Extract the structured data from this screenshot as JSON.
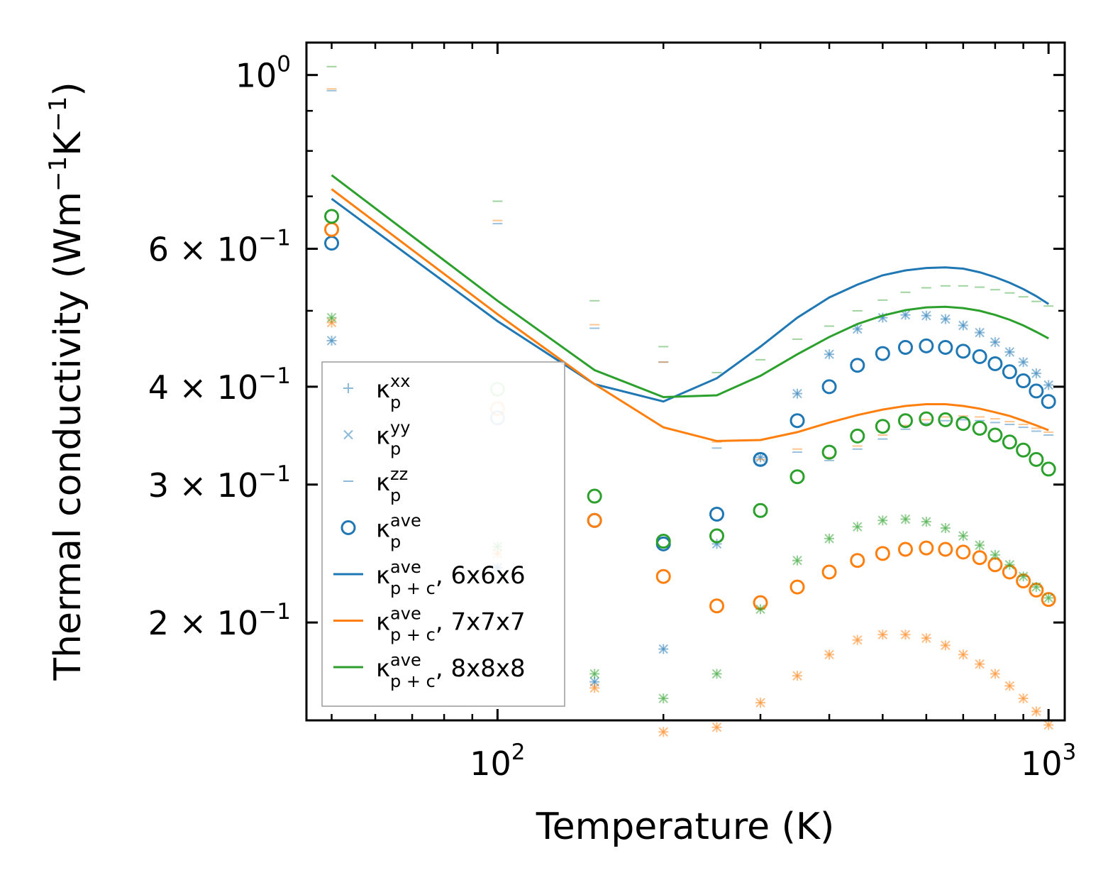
{
  "chart_data": {
    "type": "scatter",
    "xscale": "log",
    "yscale": "log",
    "xlabel": "Temperature (K)",
    "ylabel_main": "Thermal conductivity (Wm",
    "ylabel_sup1": "−1",
    "ylabel_mid": "K",
    "ylabel_sup2": "−1",
    "ylabel_end": ")",
    "xlim": [
      45,
      1070
    ],
    "ylim": [
      0.15,
      1.1
    ],
    "xticks": [
      {
        "value": 100,
        "base": "10",
        "exp": "2"
      },
      {
        "value": 1000,
        "base": "10",
        "exp": "3"
      }
    ],
    "yticks": [
      {
        "value": 1.0,
        "mant": "",
        "base": "10",
        "exp": "0"
      },
      {
        "value": 0.6,
        "mant": "6 × ",
        "base": "10",
        "exp": "−1"
      },
      {
        "value": 0.4,
        "mant": "4 × ",
        "base": "10",
        "exp": "−1"
      },
      {
        "value": 0.3,
        "mant": "3 × ",
        "base": "10",
        "exp": "−1"
      },
      {
        "value": 0.2,
        "mant": "2 × ",
        "base": "10",
        "exp": "−1"
      }
    ],
    "x": [
      50,
      100,
      150,
      200,
      250,
      300,
      350,
      400,
      450,
      500,
      550,
      600,
      650,
      700,
      750,
      800,
      850,
      900,
      950,
      1000
    ],
    "series": [
      {
        "name": "6x6x6",
        "color": "#1f77b4",
        "line": [
          0.695,
          0.485,
          0.403,
          0.383,
          0.41,
          0.45,
          0.49,
          0.52,
          0.54,
          0.555,
          0.563,
          0.567,
          0.568,
          0.566,
          0.56,
          0.552,
          0.543,
          0.533,
          0.522,
          0.51
        ],
        "ave": [
          0.61,
          0.365,
          0.27,
          0.252,
          0.275,
          0.323,
          0.362,
          0.4,
          0.426,
          0.441,
          0.449,
          0.451,
          0.449,
          0.444,
          0.437,
          0.428,
          0.418,
          0.407,
          0.395,
          0.383
        ],
        "xx": [
          0.458,
          0.235,
          0.168,
          0.185,
          0.252,
          0.325,
          0.392,
          0.44,
          0.474,
          0.49,
          0.494,
          0.493,
          0.488,
          0.479,
          0.469,
          0.456,
          0.443,
          0.43,
          0.416,
          0.402
        ],
        "yy": [
          0.458,
          0.235,
          0.168,
          0.185,
          0.252,
          0.325,
          0.392,
          0.44,
          0.474,
          0.49,
          0.494,
          0.493,
          0.488,
          0.479,
          0.469,
          0.456,
          0.443,
          0.43,
          0.416,
          0.402
        ],
        "zz": [
          0.955,
          0.646,
          0.475,
          0.43,
          0.334,
          0.318,
          0.33,
          0.322,
          0.333,
          0.343,
          0.353,
          0.359,
          0.362,
          0.363,
          0.362,
          0.36,
          0.358,
          0.355,
          0.351,
          0.347
        ]
      },
      {
        "name": "7x7x7",
        "color": "#ff7f0e",
        "line": [
          0.715,
          0.495,
          0.403,
          0.355,
          0.341,
          0.342,
          0.35,
          0.36,
          0.368,
          0.374,
          0.378,
          0.38,
          0.38,
          0.378,
          0.375,
          0.371,
          0.367,
          0.362,
          0.357,
          0.352
        ],
        "ave": [
          0.635,
          0.375,
          0.27,
          0.229,
          0.21,
          0.212,
          0.222,
          0.232,
          0.24,
          0.245,
          0.248,
          0.249,
          0.248,
          0.246,
          0.242,
          0.237,
          0.232,
          0.226,
          0.22,
          0.214
        ],
        "xx": [
          0.483,
          0.245,
          0.165,
          0.145,
          0.147,
          0.158,
          0.171,
          0.182,
          0.19,
          0.193,
          0.193,
          0.191,
          0.187,
          0.182,
          0.177,
          0.172,
          0.166,
          0.16,
          0.154,
          0.148
        ],
        "yy": [
          0.483,
          0.245,
          0.165,
          0.145,
          0.147,
          0.158,
          0.171,
          0.182,
          0.19,
          0.193,
          0.193,
          0.191,
          0.187,
          0.182,
          0.177,
          0.172,
          0.166,
          0.16,
          0.154,
          0.148
        ],
        "zz": [
          0.96,
          0.652,
          0.48,
          0.43,
          0.34,
          0.323,
          0.333,
          0.325,
          0.336,
          0.347,
          0.357,
          0.363,
          0.366,
          0.367,
          0.366,
          0.364,
          0.361,
          0.358,
          0.354,
          0.35
        ]
      },
      {
        "name": "8x8x8",
        "color": "#2ca02c",
        "line": [
          0.745,
          0.515,
          0.42,
          0.388,
          0.39,
          0.413,
          0.44,
          0.463,
          0.481,
          0.493,
          0.501,
          0.505,
          0.506,
          0.504,
          0.5,
          0.494,
          0.487,
          0.479,
          0.47,
          0.461
        ],
        "ave": [
          0.66,
          0.397,
          0.29,
          0.254,
          0.258,
          0.278,
          0.307,
          0.33,
          0.346,
          0.356,
          0.362,
          0.364,
          0.363,
          0.359,
          0.354,
          0.347,
          0.34,
          0.332,
          0.323,
          0.314
        ],
        "xx": [
          0.49,
          0.25,
          0.172,
          0.16,
          0.172,
          0.208,
          0.24,
          0.256,
          0.265,
          0.27,
          0.271,
          0.269,
          0.264,
          0.258,
          0.251,
          0.244,
          0.237,
          0.229,
          0.222,
          0.215
        ],
        "yy": [
          0.49,
          0.25,
          0.172,
          0.16,
          0.172,
          0.208,
          0.24,
          0.256,
          0.265,
          0.27,
          0.271,
          0.269,
          0.264,
          0.258,
          0.251,
          0.244,
          0.237,
          0.229,
          0.222,
          0.215
        ],
        "zz": [
          1.025,
          0.69,
          0.515,
          0.45,
          0.417,
          0.433,
          0.46,
          0.478,
          0.5,
          0.516,
          0.528,
          0.535,
          0.538,
          0.538,
          0.536,
          0.532,
          0.527,
          0.521,
          0.514,
          0.507
        ]
      }
    ],
    "legend": {
      "position": "lower-left",
      "entries": [
        {
          "marker": "plus",
          "base": "κ",
          "sub": "p",
          "sup": "xx",
          "suffix": ""
        },
        {
          "marker": "cross",
          "base": "κ",
          "sub": "p",
          "sup": "yy",
          "suffix": ""
        },
        {
          "marker": "dash",
          "base": "κ",
          "sub": "p",
          "sup": "zz",
          "suffix": ""
        },
        {
          "marker": "circle",
          "base": "κ",
          "sub": "p",
          "sup": "ave",
          "suffix": ""
        },
        {
          "marker": "line-blue",
          "base": "κ",
          "sub": "p + c",
          "sup": "ave",
          "suffix": ", 6x6x6"
        },
        {
          "marker": "line-orange",
          "base": "κ",
          "sub": "p + c",
          "sup": "ave",
          "suffix": ", 7x7x7"
        },
        {
          "marker": "line-green",
          "base": "κ",
          "sub": "p + c",
          "sup": "ave",
          "suffix": ", 8x8x8"
        }
      ]
    }
  }
}
